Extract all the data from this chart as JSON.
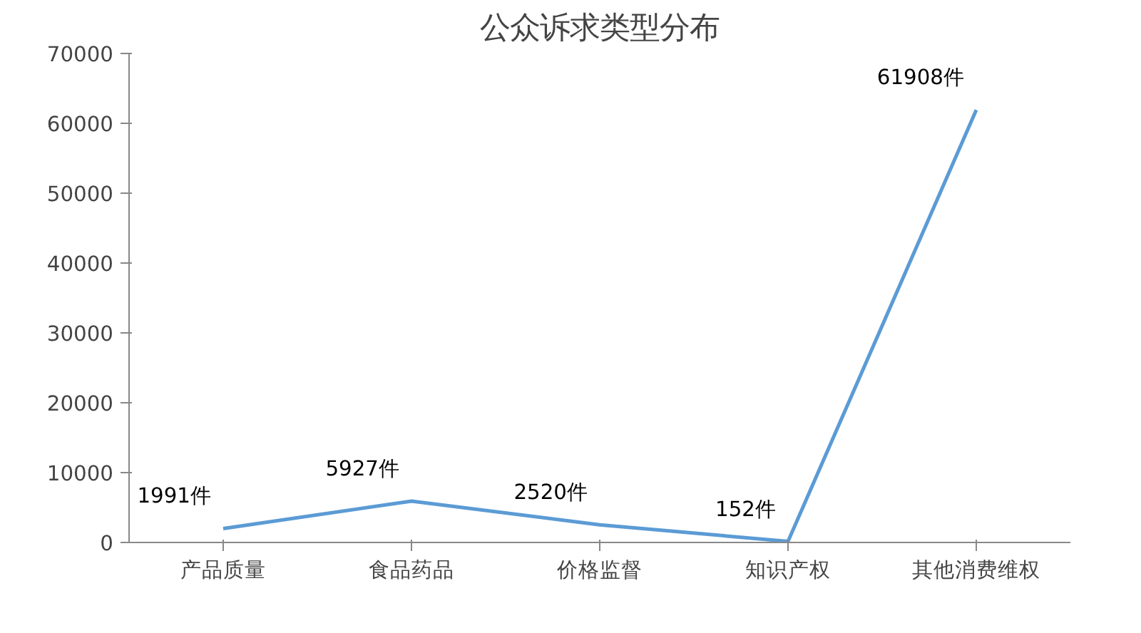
{
  "chart_data": {
    "type": "line",
    "title": "公众诉求类型分布",
    "categories": [
      "产品质量",
      "食品药品",
      "价格监督",
      "知识产权",
      "其他消费维权"
    ],
    "series": [
      {
        "color": "#5b9bd5",
        "values": [
          1991,
          5927,
          2520,
          152,
          61908
        ],
        "value_labels": [
          "1991件",
          "5927件",
          "2520件",
          "152件",
          "61908件"
        ]
      }
    ],
    "ylim": [
      0,
      70000
    ],
    "yticks": [
      0,
      10000,
      20000,
      30000,
      40000,
      50000,
      60000,
      70000
    ],
    "marker": "none",
    "line_style": "solid"
  }
}
